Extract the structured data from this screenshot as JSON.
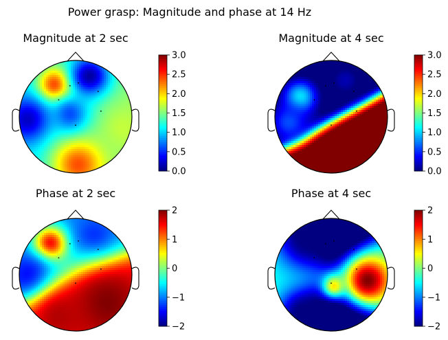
{
  "figure_title": "Power grasp: Magnitude and phase at 14 Hz",
  "chart_data": [
    {
      "type": "heatmap",
      "kind": "topographic scalp map",
      "title": "Magnitude at 2 sec",
      "colormap": "jet",
      "colorbar_range": [
        0.0,
        3.0
      ],
      "colorbar_ticks": [
        "0.0",
        "0.5",
        "1.0",
        "1.5",
        "2.0",
        "2.5",
        "3.0"
      ],
      "blobs": [
        {
          "u": -0.35,
          "v": 0.55,
          "value": 2.6,
          "sigma": 0.22
        },
        {
          "u": 0.25,
          "v": 0.72,
          "value": 0.1,
          "sigma": 0.25
        },
        {
          "u": -0.85,
          "v": -0.05,
          "value": 0.2,
          "sigma": 0.28
        },
        {
          "u": 0.05,
          "v": -0.85,
          "value": 2.4,
          "sigma": 0.32
        },
        {
          "u": 0.85,
          "v": -0.2,
          "value": 1.7,
          "sigma": 0.3
        },
        {
          "u": -0.1,
          "v": 0.05,
          "value": 0.6,
          "sigma": 0.22
        }
      ]
    },
    {
      "type": "heatmap",
      "kind": "topographic scalp map",
      "title": "Magnitude at 4 sec",
      "colormap": "jet",
      "colorbar_range": [
        0.0,
        3.0
      ],
      "colorbar_ticks": [
        "0.0",
        "0.5",
        "1.0",
        "1.5",
        "2.0",
        "2.5",
        "3.0"
      ],
      "blobs": [
        {
          "u": -0.55,
          "v": 0.35,
          "value": 1.1,
          "sigma": 0.22
        },
        {
          "u": 0.25,
          "v": 0.65,
          "value": 0.15,
          "sigma": 0.22
        },
        {
          "u": -0.75,
          "v": -0.1,
          "value": 0.6,
          "sigma": 0.25
        }
      ]
    },
    {
      "type": "heatmap",
      "kind": "topographic scalp map",
      "title": "Phase at 2 sec",
      "colormap": "jet",
      "colorbar_range": [
        -2,
        2
      ],
      "colorbar_ticks": [
        "−2",
        "−1",
        "0",
        "1",
        "2"
      ],
      "blobs": [
        {
          "u": -0.45,
          "v": 0.55,
          "value": 1.6,
          "sigma": 0.22
        },
        {
          "u": 0.35,
          "v": 0.62,
          "value": -1.5,
          "sigma": 0.25
        },
        {
          "u": -0.8,
          "v": -0.05,
          "value": -1.6,
          "sigma": 0.28
        },
        {
          "u": 0.55,
          "v": -0.5,
          "value": 2.0,
          "sigma": 0.5
        },
        {
          "u": -0.3,
          "v": -0.75,
          "value": 1.8,
          "sigma": 0.35
        }
      ]
    },
    {
      "type": "heatmap",
      "kind": "topographic scalp map",
      "title": "Phase at 4 sec",
      "colormap": "jet",
      "colorbar_range": [
        -2,
        2
      ],
      "colorbar_ticks": [
        "−2",
        "−1",
        "0",
        "1",
        "2"
      ],
      "blobs": [
        {
          "u": 0.65,
          "v": -0.1,
          "value": 2.0,
          "sigma": 0.3
        },
        {
          "u": -0.5,
          "v": -0.65,
          "value": -2.0,
          "sigma": 0.28
        },
        {
          "u": -0.45,
          "v": 0.6,
          "value": -2.0,
          "sigma": 0.35
        },
        {
          "u": 0.05,
          "v": -0.2,
          "value": 0.6,
          "sigma": 0.15
        }
      ]
    }
  ]
}
